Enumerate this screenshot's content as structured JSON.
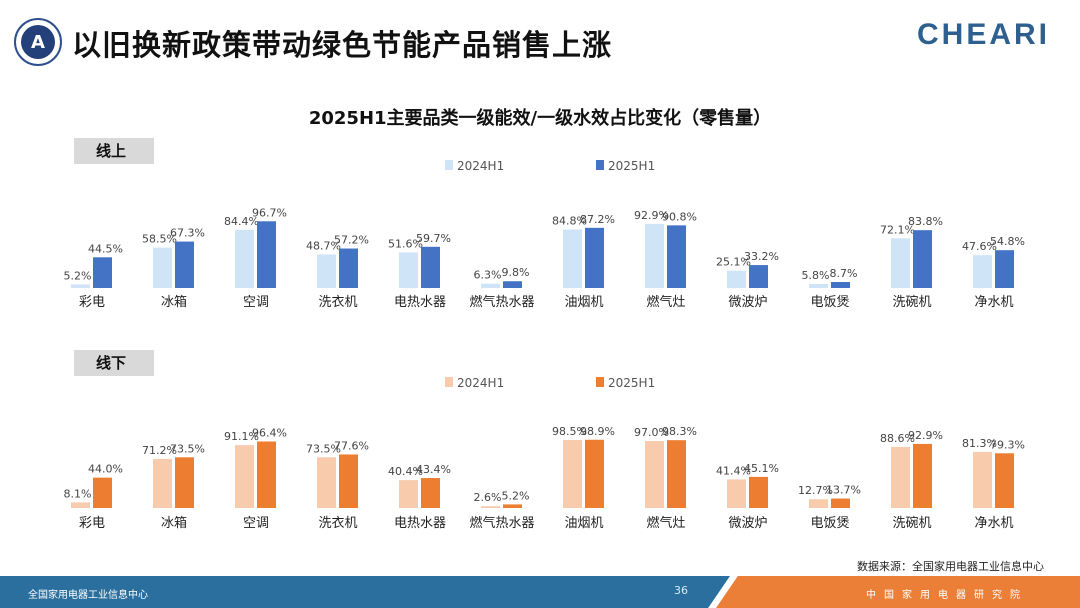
{
  "header": {
    "title": "以旧换新政策带动绿色节能产品销售上涨",
    "brand": "CHEARI",
    "logo_letter": "A"
  },
  "chart_data": {
    "type": "bar",
    "title": "2025H1主要品类一级能效/一级水效占比变化（零售量）",
    "categories": [
      "彩电",
      "冰箱",
      "空调",
      "洗衣机",
      "电热水器",
      "燃气热水器",
      "油烟机",
      "燃气灶",
      "微波炉",
      "电饭煲",
      "洗碗机",
      "净水机"
    ],
    "unit": "%",
    "ylim": [
      0,
      100
    ],
    "panels": [
      {
        "label": "线上",
        "colors": [
          "#cfe5f7",
          "#4472c4"
        ],
        "series": [
          {
            "name": "2024H1",
            "values": [
              5.2,
              58.5,
              84.4,
              48.7,
              51.6,
              6.3,
              84.8,
              92.9,
              25.1,
              5.8,
              72.1,
              47.6
            ]
          },
          {
            "name": "2025H1",
            "values": [
              44.5,
              67.3,
              96.7,
              57.2,
              59.7,
              9.8,
              87.2,
              90.8,
              33.2,
              8.7,
              83.8,
              54.8
            ]
          }
        ]
      },
      {
        "label": "线下",
        "colors": [
          "#f8cbad",
          "#ed7d31"
        ],
        "series": [
          {
            "name": "2024H1",
            "values": [
              8.1,
              71.2,
              91.1,
              73.5,
              40.4,
              2.6,
              98.5,
              97.0,
              41.4,
              12.7,
              88.6,
              81.3
            ]
          },
          {
            "name": "2025H1",
            "values": [
              44.0,
              73.5,
              96.4,
              77.6,
              43.4,
              5.2,
              98.9,
              98.3,
              45.1,
              13.7,
              92.9,
              79.3
            ]
          }
        ]
      }
    ]
  },
  "footer": {
    "source": "数据来源：全国家用电器工业信息中心",
    "left": "全国家用电器工业信息中心",
    "page": "36",
    "right": "中国家用电器研究院"
  }
}
